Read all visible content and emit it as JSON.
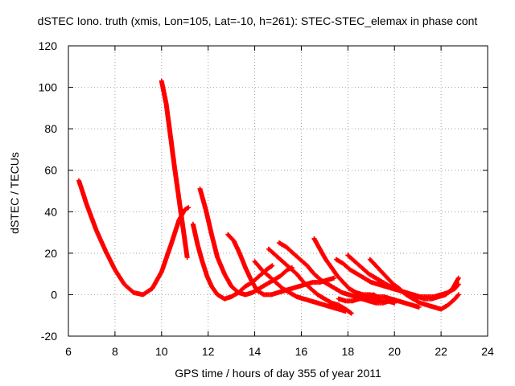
{
  "chart_data": {
    "type": "scatter",
    "title": "dSTEC Iono. truth (xmis, Lon=105, Lat=-10, h=261): STEC-STEC_elemax in phase cont",
    "xlabel": "GPS time / hours of day 355 of year 2011",
    "ylabel": "dSTEC  / TECUs",
    "xlim": [
      6,
      24
    ],
    "ylim": [
      -20,
      120
    ],
    "xticks": [
      "6",
      "8",
      "10",
      "12",
      "14",
      "16",
      "18",
      "20",
      "22",
      "24"
    ],
    "yticks": [
      "-20",
      "0",
      "20",
      "40",
      "60",
      "80",
      "100",
      "120"
    ],
    "grid": true,
    "marker_color": "#ff0000",
    "series": [
      {
        "x": [
          6.45,
          6.8,
          7.2,
          7.6,
          8.0,
          8.4,
          8.8,
          9.2,
          9.6,
          10.0,
          10.4,
          10.75,
          11.0,
          11.15
        ],
        "y": [
          55,
          43,
          31,
          21,
          12,
          5,
          1,
          0,
          3,
          11,
          24,
          36,
          41,
          42
        ]
      },
      {
        "x": [
          10.0,
          10.2,
          10.4,
          10.55,
          10.7,
          10.85,
          11.0,
          11.1
        ],
        "y": [
          103,
          92,
          75,
          62,
          50,
          38,
          26,
          18
        ]
      },
      {
        "x": [
          11.35,
          11.55,
          11.75,
          11.95,
          12.15,
          12.4,
          12.7,
          13.0,
          13.3,
          13.6,
          13.9,
          14.2,
          14.5,
          14.75
        ],
        "y": [
          34,
          24,
          16,
          9,
          4,
          0,
          -2,
          -1,
          1,
          4,
          6,
          9,
          12,
          14
        ]
      },
      {
        "x": [
          11.65,
          11.9,
          12.15,
          12.4,
          12.7,
          13.0,
          13.3,
          13.6,
          13.9,
          14.2,
          14.5,
          14.8,
          15.1,
          15.4,
          15.6
        ],
        "y": [
          51,
          41,
          29,
          18,
          10,
          4,
          1,
          0,
          1,
          3,
          5,
          7,
          9,
          12,
          13
        ]
      },
      {
        "x": [
          12.85,
          13.1,
          13.35,
          13.6,
          13.85,
          14.1,
          14.4,
          14.7,
          15.0,
          15.3,
          15.6,
          15.9,
          16.2,
          16.5,
          16.8,
          17.1,
          17.4
        ],
        "y": [
          29,
          26,
          20,
          13,
          7,
          2,
          0,
          0,
          1,
          2,
          3,
          4,
          5,
          6,
          6,
          7,
          8
        ]
      },
      {
        "x": [
          14.0,
          14.3,
          14.6,
          14.9,
          15.2,
          15.5,
          15.8,
          16.1,
          16.4,
          16.7,
          17.0,
          17.3,
          17.6,
          17.9
        ],
        "y": [
          16,
          12,
          9,
          6,
          3,
          1,
          -1,
          -2,
          -3,
          -4,
          -5,
          -6,
          -7,
          -8
        ]
      },
      {
        "x": [
          14.6,
          14.9,
          15.2,
          15.5,
          15.8,
          16.1,
          16.4,
          16.7,
          17.0,
          17.3,
          17.6,
          17.9,
          18.15
        ],
        "y": [
          22,
          19,
          16,
          13,
          10,
          6,
          3,
          0,
          -2,
          -4,
          -5,
          -7,
          -9
        ]
      },
      {
        "x": [
          15.05,
          15.35,
          15.65,
          15.95,
          16.25,
          16.55,
          16.85,
          17.15,
          17.45,
          17.75,
          18.05,
          18.35,
          18.7,
          19.0,
          19.35,
          19.7,
          20.0
        ],
        "y": [
          25,
          23,
          20,
          17,
          14,
          10,
          7,
          5,
          3,
          1,
          0,
          -1,
          -1,
          -2,
          -3,
          -3,
          -4
        ]
      },
      {
        "x": [
          16.55,
          16.8,
          17.05,
          17.3,
          17.55,
          17.8,
          18.05,
          18.35,
          18.65,
          18.95,
          19.25,
          19.55,
          19.85,
          20.15,
          20.45,
          20.75,
          21.05
        ],
        "y": [
          27,
          22,
          17,
          13,
          9,
          6,
          3,
          1,
          0,
          0,
          -1,
          -1,
          -2,
          -3,
          -4,
          -5,
          -6
        ]
      },
      {
        "x": [
          17.5,
          17.8,
          18.1,
          18.4,
          18.7,
          19.0,
          19.3,
          19.6,
          19.9,
          20.2,
          20.5,
          20.8,
          21.1,
          21.4,
          21.7,
          22.0,
          22.3,
          22.6,
          22.75
        ],
        "y": [
          17,
          15,
          12,
          10,
          8,
          6,
          5,
          4,
          3,
          2,
          1,
          0,
          -1,
          -1,
          -1,
          0,
          1,
          3,
          5
        ]
      },
      {
        "x": [
          18.0,
          18.3,
          18.6,
          18.9,
          19.2,
          19.5,
          19.8,
          20.1,
          20.4,
          20.7,
          21.0,
          21.3,
          21.6,
          21.9,
          22.2,
          22.5,
          22.75
        ],
        "y": [
          19,
          16,
          13,
          10,
          8,
          6,
          4,
          3,
          1,
          0,
          -1,
          -2,
          -2,
          -1,
          0,
          3,
          8
        ]
      },
      {
        "x": [
          18.95,
          19.2,
          19.45,
          19.7,
          19.95,
          20.2,
          20.5,
          20.8,
          21.1,
          21.4,
          21.7,
          22.0,
          22.3,
          22.6,
          22.75
        ],
        "y": [
          17,
          14,
          11,
          8,
          5,
          3,
          0,
          -2,
          -4,
          -5,
          -6,
          -7,
          -5,
          -2,
          0
        ]
      },
      {
        "x": [
          17.6,
          17.9,
          18.2,
          18.5,
          18.8,
          19.1,
          19.4
        ],
        "y": [
          -2,
          -3,
          -3,
          -2,
          -1,
          0,
          -2
        ]
      },
      {
        "x": [
          18.3,
          18.6,
          18.9,
          19.2,
          19.5,
          19.8
        ],
        "y": [
          -1,
          -2,
          -3,
          -4,
          -4,
          -3
        ]
      }
    ]
  }
}
